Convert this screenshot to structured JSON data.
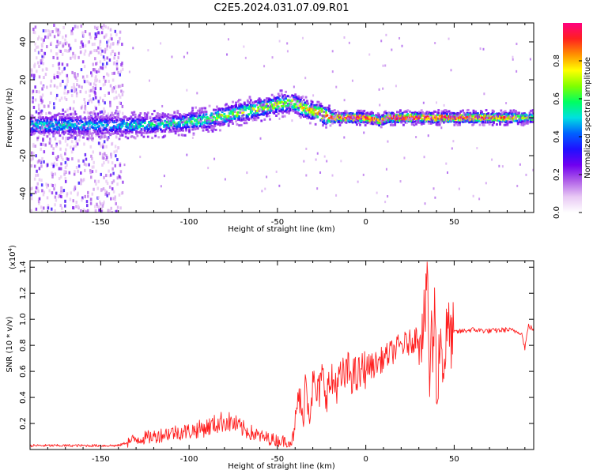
{
  "figure_title": "C2E5.2024.031.07.09.R01",
  "chart_data": [
    {
      "type": "heatmap",
      "xlabel": "Height of straight line (km)",
      "ylabel": "Frequency (Hz)",
      "xlim": [
        -190,
        95
      ],
      "ylim": [
        -50,
        50
      ],
      "x_ticks": [
        -150,
        -100,
        -50,
        0,
        50
      ],
      "y_ticks": [
        -40,
        -20,
        0,
        20,
        40
      ],
      "colorbar": {
        "label": "Normalized spectral amplitude",
        "range": [
          0.0,
          1.0
        ],
        "ticks": [
          "0.0",
          "0.2",
          "0.4",
          "0.6",
          "0.8"
        ],
        "tick_values": [
          0.0,
          0.2,
          0.4,
          0.6,
          0.8
        ],
        "colors": [
          "#ffffff",
          "#e8c8f4",
          "#b060e8",
          "#7000f0",
          "#2010ff",
          "#0060ff",
          "#00e0e0",
          "#00ff60",
          "#80ff00",
          "#ffff00",
          "#ff9000",
          "#ff2020",
          "#ff0080"
        ]
      },
      "ridge": {
        "x": [
          -190,
          -170,
          -150,
          -130,
          -110,
          -90,
          -75,
          -60,
          -50,
          -42,
          -35,
          -28,
          -20,
          -10,
          0,
          5,
          8,
          12,
          20,
          40,
          60,
          80,
          95
        ],
        "center_hz": [
          -4,
          -4,
          -4,
          -4,
          -3,
          -1,
          2,
          5,
          7,
          8,
          5,
          3,
          0,
          0,
          0,
          -1,
          -2,
          0,
          0,
          0,
          0,
          0,
          0
        ],
        "peak_amplitude": [
          0.55,
          0.55,
          0.5,
          0.55,
          0.55,
          0.65,
          0.7,
          0.72,
          0.72,
          0.75,
          0.8,
          0.85,
          0.95,
          1.0,
          1.0,
          0.95,
          0.9,
          1.0,
          1.0,
          1.0,
          0.95,
          0.9,
          0.7
        ]
      },
      "noise_region": {
        "x": [
          -190,
          -138
        ],
        "hz": [
          -50,
          50
        ]
      }
    },
    {
      "type": "line",
      "xlabel": "Height of straight line (km)",
      "ylabel": "SNR (10 * v/v)",
      "y_scale_label": "(x10",
      "y_scale_exp": "4",
      "y_scale_close": ")",
      "xlim": [
        -190,
        95
      ],
      "ylim": [
        0,
        1.45
      ],
      "x_ticks": [
        -150,
        -100,
        -50,
        0,
        50
      ],
      "y_ticks": [
        0.2,
        0.4,
        0.6,
        0.8,
        1.0,
        1.2,
        1.4
      ],
      "series": [
        {
          "color": "#ff2020",
          "x": [
            -190,
            -170,
            -150,
            -140,
            -130,
            -120,
            -110,
            -100,
            -90,
            -80,
            -75,
            -70,
            -60,
            -50,
            -42,
            -40,
            -38,
            -36,
            -34,
            -32,
            -30,
            -27,
            -25,
            -22,
            -20,
            -15,
            -10,
            -5,
            0,
            5,
            10,
            15,
            20,
            25,
            30,
            32,
            34,
            35,
            36,
            37,
            38,
            39,
            40,
            42,
            44,
            46,
            48,
            50,
            55,
            60,
            70,
            80,
            88,
            90,
            92,
            95
          ],
          "y": [
            0.03,
            0.03,
            0.03,
            0.03,
            0.08,
            0.1,
            0.13,
            0.14,
            0.17,
            0.22,
            0.2,
            0.16,
            0.1,
            0.07,
            0.06,
            0.15,
            0.45,
            0.2,
            0.55,
            0.3,
            0.5,
            0.4,
            0.55,
            0.45,
            0.5,
            0.52,
            0.6,
            0.55,
            0.63,
            0.65,
            0.7,
            0.75,
            0.8,
            0.82,
            0.88,
            0.92,
            1.1,
            1.42,
            0.4,
            1.0,
            0.6,
            1.3,
            0.35,
            0.9,
            0.6,
            0.95,
            0.85,
            0.9,
            0.91,
            0.92,
            0.91,
            0.92,
            0.9,
            0.78,
            0.95,
            0.92
          ]
        }
      ]
    }
  ]
}
